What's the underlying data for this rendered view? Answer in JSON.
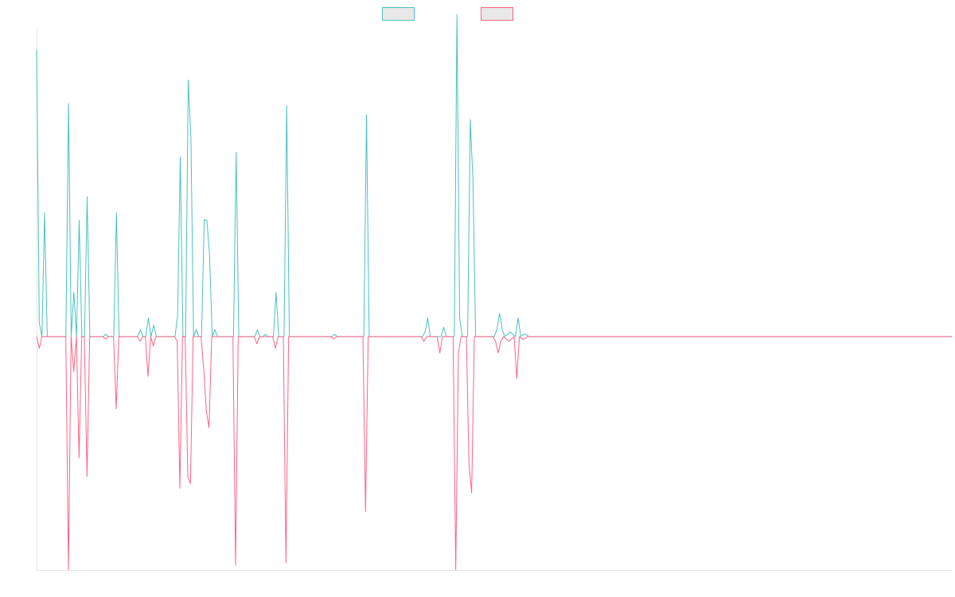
{
  "chart_data": {
    "type": "line",
    "title": "",
    "xlabel": "",
    "ylabel": "",
    "ylim": [
      -1.0,
      1.32
    ],
    "grid": false,
    "legend": "top-center",
    "colors": {
      "series_a": "#4bc0c0",
      "series_b": "#ff6384",
      "legend_fill": "#e8e8e8",
      "axis": "#e6e6e6"
    },
    "series": [
      {
        "name": "",
        "values": [
          1.23,
          0.06,
          0,
          0.53,
          0,
          0,
          0,
          0,
          0,
          0,
          0,
          0,
          1.0,
          0,
          0.19,
          0,
          0.5,
          0,
          0,
          0.6,
          0,
          0,
          0,
          0,
          0,
          0,
          0.01,
          0,
          0,
          0,
          0.53,
          0,
          0,
          0,
          0,
          0,
          0,
          0,
          0,
          0.03,
          0,
          0,
          0.08,
          0,
          0.05,
          0,
          0,
          0,
          0,
          0,
          0,
          0,
          0,
          0.09,
          0.77,
          0,
          0,
          1.1,
          0.85,
          0,
          0.03,
          0,
          0,
          0.5,
          0.5,
          0.35,
          0,
          0.03,
          0,
          0,
          0,
          0,
          0,
          0,
          0,
          0.79,
          0,
          0,
          0,
          0,
          0,
          0,
          0,
          0.03,
          0,
          0,
          0.01,
          0,
          0,
          0,
          0.19,
          0,
          0,
          0,
          0.99,
          0,
          0,
          0,
          0,
          0,
          0,
          0,
          0,
          0,
          0,
          0,
          0,
          0,
          0,
          0,
          0,
          0,
          0.01,
          0,
          0,
          0,
          0,
          0,
          0,
          0,
          0,
          0,
          0,
          0,
          0.95,
          0,
          0,
          0,
          0,
          0,
          0,
          0,
          0,
          0,
          0,
          0,
          0,
          0,
          0,
          0,
          0,
          0,
          0,
          0,
          0,
          0,
          0.02,
          0.08,
          0,
          0,
          0,
          0,
          0,
          0.04,
          0,
          0,
          0,
          0,
          1.38,
          0.08,
          0,
          0,
          0,
          0.93,
          0.67,
          0,
          0,
          0,
          0,
          0,
          0,
          0,
          0,
          0.03,
          0.1,
          0.03,
          0,
          0.01,
          0.02,
          0.01,
          0,
          0.08,
          0,
          0.01,
          0.01,
          0,
          0,
          0,
          0,
          0,
          0,
          0,
          0,
          0,
          0,
          0,
          0,
          0,
          0,
          0,
          0,
          0,
          0,
          0,
          0,
          0,
          0,
          0,
          0,
          0,
          0,
          0,
          0,
          0,
          0,
          0,
          0,
          0,
          0,
          0,
          0,
          0,
          0,
          0,
          0,
          0,
          0,
          0,
          0,
          0,
          0,
          0,
          0,
          0,
          0,
          0,
          0,
          0,
          0,
          0,
          0,
          0,
          0,
          0,
          0,
          0,
          0,
          0,
          0,
          0,
          0,
          0,
          0,
          0,
          0,
          0,
          0,
          0,
          0,
          0,
          0,
          0,
          0,
          0,
          0,
          0,
          0,
          0,
          0,
          0,
          0,
          0,
          0,
          0,
          0,
          0,
          0,
          0,
          0,
          0,
          0,
          0,
          0,
          0,
          0,
          0,
          0,
          0,
          0,
          0,
          0,
          0,
          0,
          0,
          0,
          0,
          0,
          0,
          0,
          0,
          0,
          0,
          0,
          0,
          0,
          0,
          0,
          0,
          0,
          0,
          0,
          0,
          0,
          0,
          0,
          0,
          0,
          0,
          0,
          0,
          0,
          0,
          0,
          0,
          0,
          0,
          0,
          0,
          0,
          0,
          0,
          0,
          0,
          0,
          0,
          0,
          0,
          0,
          0,
          0,
          0,
          0,
          0,
          0,
          0
        ]
      },
      {
        "name": "",
        "values": [
          0,
          -0.05,
          0,
          0,
          0,
          0,
          0,
          0,
          0,
          0,
          0,
          0,
          -1.0,
          0,
          -0.15,
          0,
          -0.52,
          0,
          0,
          -0.6,
          0,
          0,
          0,
          0,
          0,
          0,
          -0.01,
          0,
          0,
          0,
          -0.31,
          0,
          0,
          0,
          0,
          0,
          0,
          0,
          0,
          -0.02,
          0,
          0,
          -0.17,
          0,
          -0.04,
          0,
          0,
          0,
          0,
          0,
          0,
          0,
          0,
          -0.02,
          -0.65,
          0,
          0,
          -0.6,
          -0.63,
          0,
          0,
          0,
          0,
          -0.14,
          -0.32,
          -0.39,
          0,
          0,
          0,
          0,
          0,
          0,
          0,
          0,
          0,
          -0.98,
          0,
          0,
          0,
          0,
          0,
          0,
          0,
          -0.03,
          0,
          0,
          0,
          0,
          0,
          0,
          -0.05,
          0,
          0,
          0,
          -0.97,
          0,
          0,
          0,
          0,
          0,
          0,
          0,
          0,
          0,
          0,
          0,
          0,
          0,
          0,
          0,
          0,
          0,
          -0.01,
          0,
          0,
          0,
          0,
          0,
          0,
          0,
          0,
          0,
          0,
          0,
          -0.75,
          0,
          0,
          0,
          0,
          0,
          0,
          0,
          0,
          0,
          0,
          0,
          0,
          0,
          0,
          0,
          0,
          0,
          0,
          0,
          0,
          0,
          -0.02,
          0,
          0,
          0,
          0,
          0,
          -0.07,
          0,
          0,
          0,
          0,
          0,
          -1.0,
          -0.07,
          0,
          0,
          0,
          -0.55,
          -0.67,
          0,
          0,
          0,
          0,
          0,
          0,
          0,
          0,
          -0.02,
          -0.07,
          -0.02,
          0,
          -0.01,
          -0.02,
          -0.01,
          0,
          -0.18,
          0,
          -0.01,
          -0.01,
          0,
          0,
          0,
          0,
          0,
          0,
          0,
          0,
          0,
          0,
          0,
          0,
          0,
          0,
          0,
          0,
          0,
          0,
          0,
          0,
          0,
          0,
          0,
          0,
          0,
          0,
          0,
          0,
          0,
          0,
          0,
          0,
          0,
          0,
          0,
          0,
          0,
          0,
          0,
          0,
          0,
          0,
          0,
          0,
          0,
          0,
          0,
          0,
          0,
          0,
          0,
          0,
          0,
          0,
          0,
          0,
          0,
          0,
          0,
          0,
          0,
          0,
          0,
          0,
          0,
          0,
          0,
          0,
          0,
          0,
          0,
          0,
          0,
          0,
          0,
          0,
          0,
          0,
          0,
          0,
          0,
          0,
          0,
          0,
          0,
          0,
          0,
          0,
          0,
          0,
          0,
          0,
          0,
          0,
          0,
          0,
          0,
          0,
          0,
          0,
          0,
          0,
          0,
          0,
          0,
          0,
          0,
          0,
          0,
          0,
          0,
          0,
          0,
          0,
          0,
          0,
          0,
          0,
          0,
          0,
          0,
          0,
          0,
          0,
          0,
          0,
          0,
          0,
          0,
          0,
          0,
          0,
          0,
          0,
          0,
          0,
          0,
          0,
          0,
          0,
          0,
          0,
          0,
          0,
          0,
          0,
          0,
          0,
          0,
          0,
          0,
          0,
          0,
          0,
          0,
          0,
          0,
          0,
          0,
          0,
          0
        ]
      }
    ]
  }
}
